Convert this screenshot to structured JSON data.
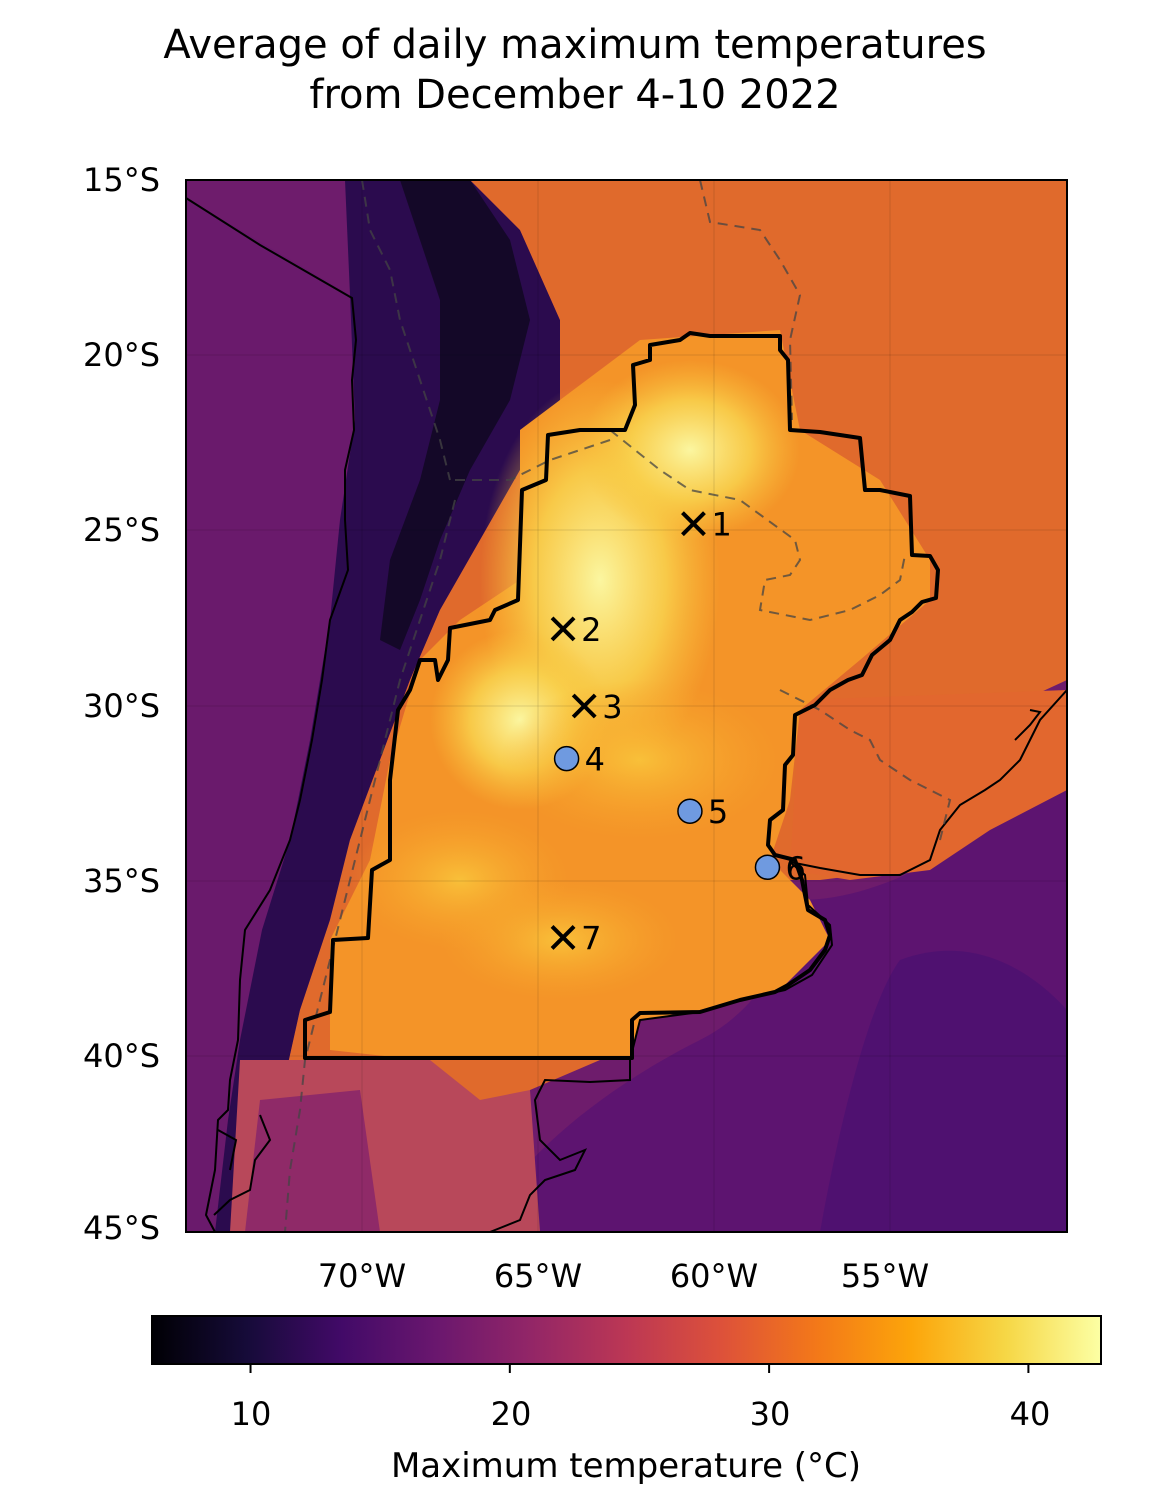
{
  "title": {
    "line1": "Average of daily maximum temperatures",
    "line2": "from December 4-10 2022"
  },
  "map": {
    "extent": {
      "lon_min": -75,
      "lon_max": -50,
      "lat_min": -45,
      "lat_max": -15
    },
    "lat_ticks": [
      {
        "value": -15,
        "label": "15°S"
      },
      {
        "value": -20,
        "label": "20°S"
      },
      {
        "value": -25,
        "label": "25°S"
      },
      {
        "value": -30,
        "label": "30°S"
      },
      {
        "value": -35,
        "label": "35°S"
      },
      {
        "value": -40,
        "label": "40°S"
      },
      {
        "value": -45,
        "label": "45°S"
      }
    ],
    "lon_ticks": [
      {
        "value": -70,
        "label": "70°W"
      },
      {
        "value": -65,
        "label": "65°W"
      },
      {
        "value": -60,
        "label": "60°W"
      },
      {
        "value": -55,
        "label": "55°W"
      }
    ],
    "stations": [
      {
        "id": "1",
        "marker": "x",
        "lon": -60.6,
        "lat": -24.8
      },
      {
        "id": "2",
        "marker": "x",
        "lon": -64.3,
        "lat": -27.8
      },
      {
        "id": "3",
        "marker": "x",
        "lon": -63.7,
        "lat": -30.0
      },
      {
        "id": "4",
        "marker": "circle",
        "lon": -64.2,
        "lat": -31.5
      },
      {
        "id": "5",
        "marker": "circle",
        "lon": -60.7,
        "lat": -33.0
      },
      {
        "id": "6",
        "marker": "circle",
        "lon": -58.5,
        "lat": -34.6
      },
      {
        "id": "7",
        "marker": "x",
        "lon": -64.3,
        "lat": -36.6
      }
    ],
    "station_circle_color": "#6f9ae0"
  },
  "colorbar": {
    "colormap": "inferno",
    "vmin": 6.2,
    "vmax": 42.8,
    "ticks": [
      {
        "value": 10,
        "label": "10"
      },
      {
        "value": 20,
        "label": "20"
      },
      {
        "value": 30,
        "label": "30"
      },
      {
        "value": 40,
        "label": "40"
      }
    ],
    "label": "Maximum temperature (°C)"
  }
}
